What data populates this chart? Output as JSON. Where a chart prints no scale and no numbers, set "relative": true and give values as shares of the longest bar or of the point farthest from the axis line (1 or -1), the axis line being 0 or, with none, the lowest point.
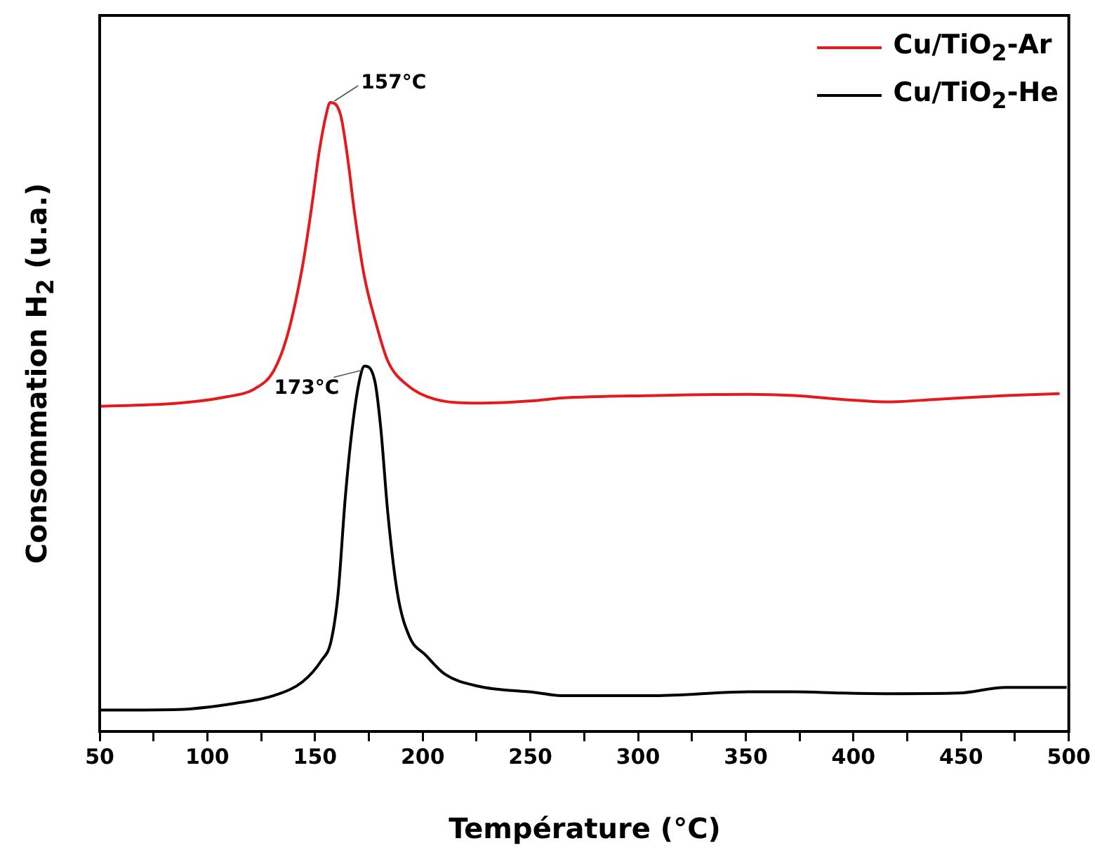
{
  "chart_data": {
    "type": "line",
    "relative": true,
    "xlabel": "Température (°C)",
    "ylabel": "Consommation H$_{2}$ (u.a.)",
    "xlim": [
      50,
      500
    ],
    "xticks": [
      50,
      {
        "value": 75,
        "label": null
      },
      100,
      {
        "value": 125,
        "label": null
      },
      150,
      {
        "value": 175,
        "label": null
      },
      200,
      {
        "value": 225,
        "label": null
      },
      250,
      {
        "value": 275,
        "label": null
      },
      300,
      {
        "value": 325,
        "label": null
      },
      350,
      {
        "value": 375,
        "label": null
      },
      400,
      {
        "value": 425,
        "label": null
      },
      450,
      {
        "value": 475,
        "label": null
      },
      500
    ],
    "legend": "top right",
    "grid": false,
    "marker": "none",
    "line_style": "solid",
    "annotations": [
      {
        "text": "157°C",
        "x": 157,
        "y": 1
      },
      {
        "text": "173°C",
        "x": 173,
        "y": 0.581
      }
    ],
    "series": [
      {
        "name": "Cu/TiO$_{2}$-Ar",
        "color": "#e41a1c",
        "x": [
          50.4,
          86.8,
          108.9,
          122.1,
          130.9,
          137.5,
          144.2,
          148.6,
          151.9,
          155.2,
          157,
          161.8,
          165.1,
          168.4,
          172.8,
          178.3,
          183.8,
          192.7,
          205.9,
          225.7,
          252.2,
          264.2,
          307.7,
          351.2,
          372.9,
          394.6,
          416.4,
          438.1,
          470.7,
          495.7
        ],
        "values": [
          0.517,
          0.522,
          0.532,
          0.545,
          0.574,
          0.634,
          0.74,
          0.838,
          0.921,
          0.981,
          1,
          0.981,
          0.913,
          0.823,
          0.725,
          0.649,
          0.589,
          0.551,
          0.528,
          0.522,
          0.526,
          0.53,
          0.534,
          0.536,
          0.534,
          0.528,
          0.524,
          0.528,
          0.534,
          0.537
        ]
      },
      {
        "name": "Cu/TiO$_{2}$-He",
        "color": "#000000",
        "x": [
          50.4,
          86.8,
          113.3,
          130.9,
          144.2,
          153,
          157.4,
          160.7,
          164,
          167.3,
          170.6,
          173,
          177.7,
          180.5,
          183.8,
          188.3,
          193.8,
          201.5,
          210.3,
          225.7,
          252.2,
          264.2,
          307.7,
          351.2,
          372.9,
          394.6,
          416.4,
          449,
          470.7,
          499
        ],
        "values": [
          0.034,
          0.035,
          0.045,
          0.057,
          0.079,
          0.113,
          0.143,
          0.219,
          0.37,
          0.483,
          0.558,
          0.581,
          0.558,
          0.483,
          0.347,
          0.219,
          0.151,
          0.121,
          0.091,
          0.072,
          0.062,
          0.057,
          0.057,
          0.063,
          0.063,
          0.061,
          0.06,
          0.061,
          0.07,
          0.07
        ]
      }
    ]
  }
}
